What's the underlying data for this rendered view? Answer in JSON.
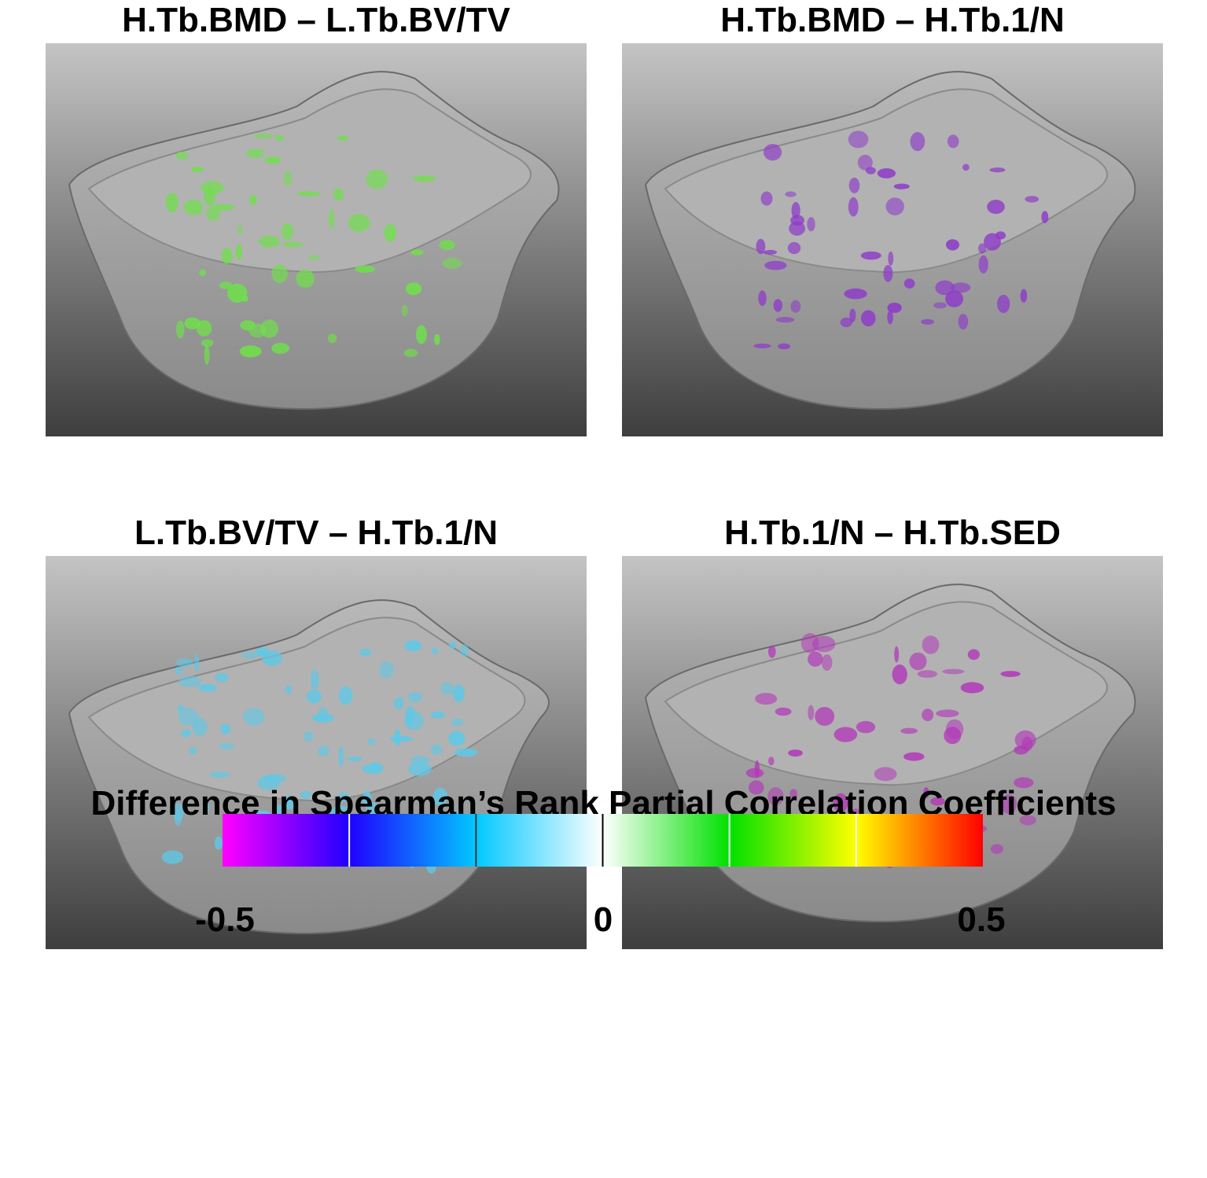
{
  "panels": [
    {
      "title": "H.Tb.BMD – L.Tb.BV/TV",
      "dominant_color": "#6fe04a"
    },
    {
      "title": "H.Tb.BMD – H.Tb.1/N",
      "dominant_color": "#8e3cc8"
    },
    {
      "title": "L.Tb.BV/TV – H.Tb.1/N",
      "dominant_color": "#5fc8e6"
    },
    {
      "title": "H.Tb.1/N – H.Tb.SED",
      "dominant_color": "#b23ab8"
    }
  ],
  "colorbar": {
    "title": "Difference in Spearman’s Rank Partial Correlation Coefficients",
    "min_label": "-0.5",
    "mid_label": "0",
    "max_label": "0.5",
    "stops": [
      "#ff00ff",
      "#2000ff",
      "#00c8ff",
      "#ffffff",
      "#00e000",
      "#ffff00",
      "#ff0000"
    ]
  }
}
